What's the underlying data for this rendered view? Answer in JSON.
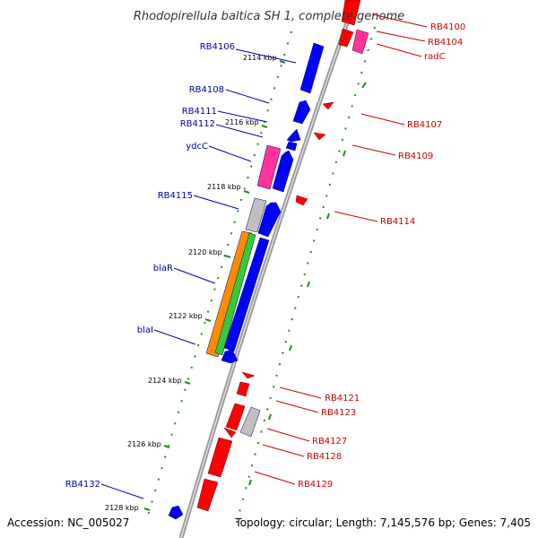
{
  "title": "Rhodopirellula baltica SH 1, complete genome",
  "accession": "Accession: NC_005027",
  "topology": "Topology: circular; Length: 7,145,576 bp; Genes: 7,405",
  "colors": {
    "forward_label": "#0000aa",
    "reverse_label": "#cc0000",
    "backbone": "#888888",
    "tick_ring": "#228b22",
    "cds_forward": "#0000ff",
    "cds_reverse": "#ff0000",
    "rna": "#ff3399",
    "other_feature": "#c0c0c0",
    "bla_region_orange": "#ff8c00",
    "bla_region_green": "#33cc33"
  },
  "ticks": [
    {
      "label": "2114 kbp"
    },
    {
      "label": "2116 kbp"
    },
    {
      "label": "2118 kbp"
    },
    {
      "label": "2120 kbp"
    },
    {
      "label": "2122 kbp"
    },
    {
      "label": "2124 kbp"
    },
    {
      "label": "2126 kbp"
    },
    {
      "label": "2128 kbp"
    }
  ],
  "forward_labels": [
    {
      "text": "RB4106"
    },
    {
      "text": "RB4108"
    },
    {
      "text": "RB4111"
    },
    {
      "text": "RB4112"
    },
    {
      "text": "ydcC"
    },
    {
      "text": "RB4115"
    },
    {
      "text": "blaR"
    },
    {
      "text": "blaI"
    },
    {
      "text": "RB4132"
    }
  ],
  "reverse_labels": [
    {
      "text": "RB4100"
    },
    {
      "text": "RB4104"
    },
    {
      "text": "radC"
    },
    {
      "text": "RB4107"
    },
    {
      "text": "RB4109"
    },
    {
      "text": "RB4114"
    },
    {
      "text": "RB4121"
    },
    {
      "text": "RB4123"
    },
    {
      "text": "RB4127"
    },
    {
      "text": "RB4128"
    },
    {
      "text": "RB4129"
    }
  ]
}
